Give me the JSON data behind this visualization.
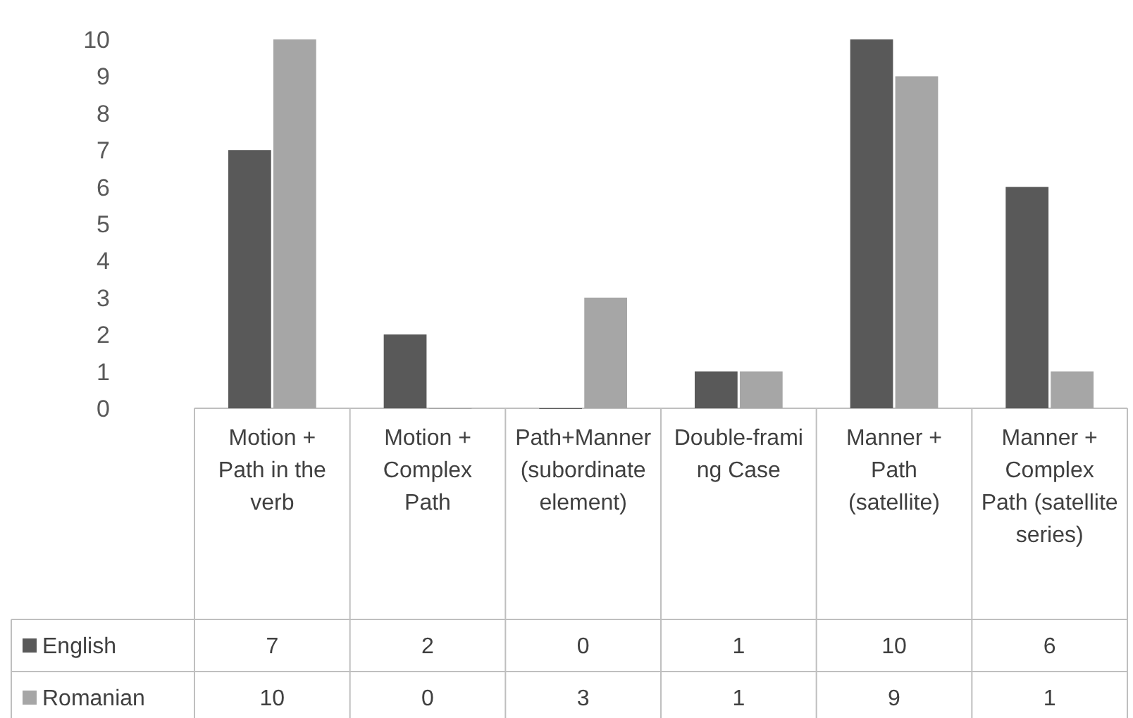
{
  "chart_data": {
    "type": "bar",
    "categories": [
      "Motion + Path in the verb",
      "Motion + Complex Path",
      "Path+Manner (subordinate element)",
      "Double-framing Case",
      "Manner + Path (satellite)",
      "Manner + Complex Path (satellite series)"
    ],
    "series": [
      {
        "name": "English",
        "color": "#595959",
        "values": [
          7,
          2,
          0,
          1,
          10,
          6
        ]
      },
      {
        "name": "Romanian",
        "color": "#a6a6a6",
        "values": [
          10,
          0,
          3,
          1,
          9,
          1
        ]
      }
    ],
    "ylim": [
      0,
      10
    ],
    "yticks": [
      0,
      1,
      2,
      3,
      4,
      5,
      6,
      7,
      8,
      9,
      10
    ],
    "grid": false,
    "legend": "bottom",
    "data_labels": true
  }
}
